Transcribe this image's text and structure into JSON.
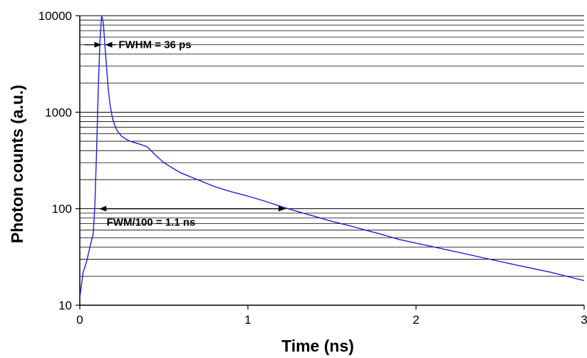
{
  "chart_data": {
    "type": "line",
    "title": "",
    "xlabel": "Time (ns)",
    "ylabel": "Photon counts (a.u.)",
    "xlim": [
      0,
      3
    ],
    "ylim": [
      10,
      10000
    ],
    "yscale": "log",
    "grid": "horizontal, at 1-2-…-9 per decade",
    "x_ticks": [
      0,
      1,
      2,
      3
    ],
    "x_tick_labels": [
      "0",
      "1",
      "2",
      "3"
    ],
    "y_ticks": [
      10,
      100,
      1000,
      10000
    ],
    "y_tick_labels": [
      "10",
      "100",
      "1000",
      "10000"
    ],
    "series": [
      {
        "color": "#1f1fd1",
        "x": [
          0.0,
          0.02,
          0.04,
          0.06,
          0.08,
          0.09,
          0.1,
          0.11,
          0.12,
          0.13,
          0.14,
          0.15,
          0.16,
          0.17,
          0.18,
          0.19,
          0.2,
          0.22,
          0.25,
          0.28,
          0.3,
          0.35,
          0.4,
          0.45,
          0.5,
          0.55,
          0.6,
          0.7,
          0.8,
          0.9,
          1.0,
          1.1,
          1.2,
          1.3,
          1.4,
          1.5,
          1.6,
          1.7,
          1.8,
          1.9,
          2.0,
          2.2,
          2.4,
          2.6,
          2.8,
          3.0
        ],
        "y": [
          12,
          22,
          28,
          40,
          55,
          110,
          400,
          1800,
          5500,
          10000,
          8500,
          4800,
          2800,
          1700,
          1200,
          950,
          800,
          650,
          560,
          520,
          500,
          470,
          440,
          360,
          300,
          265,
          235,
          200,
          170,
          150,
          135,
          120,
          105,
          93,
          83,
          74,
          67,
          60,
          54,
          48,
          44,
          37,
          31,
          26,
          22,
          18
        ]
      }
    ],
    "annotations": [
      {
        "text": "FWHM = 36 ps",
        "x_range": [
          0.03,
          0.18
        ],
        "y": 5000
      },
      {
        "text": "FWM/100 = 1.1 ns",
        "x_range": [
          0.12,
          1.22
        ],
        "y": 100
      }
    ]
  }
}
